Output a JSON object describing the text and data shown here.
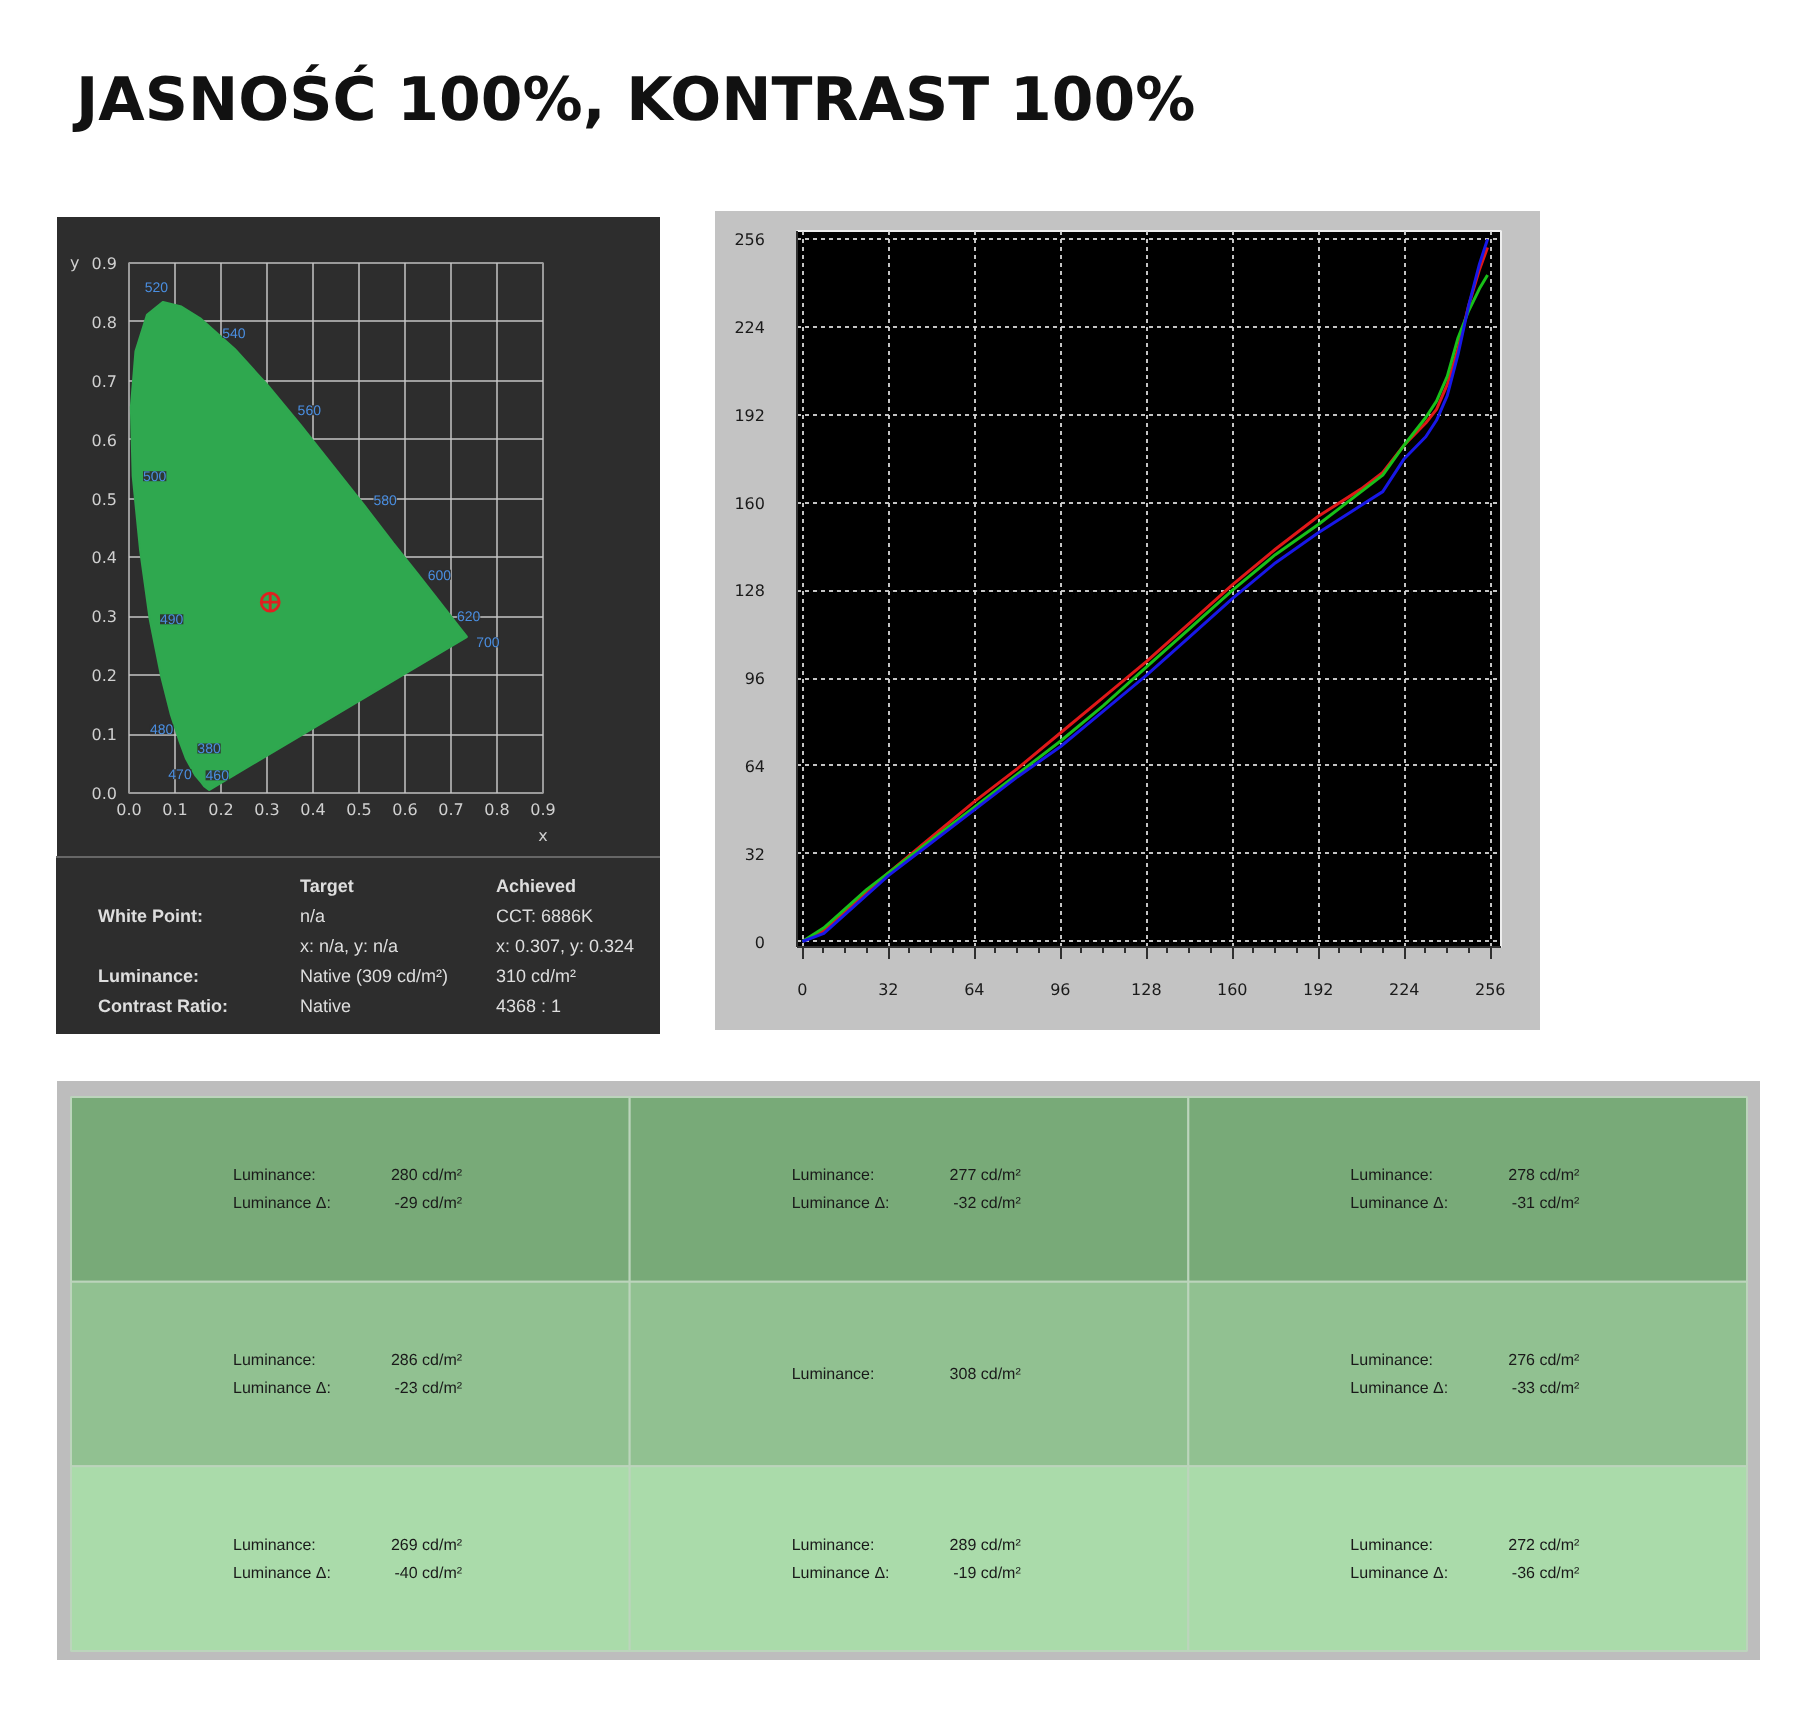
{
  "chart_data": [
    {
      "type": "scatter",
      "title": "JASNOŚĆ 100%, KONTRAST 100%",
      "xlabel": "x",
      "ylabel": "y",
      "xlim": [
        0,
        0.9
      ],
      "ylim": [
        0,
        0.9
      ],
      "xticks": [
        {
          "value": 0,
          "label": "0.0"
        },
        0.1,
        0.2,
        0.3,
        0.4,
        0.5,
        0.6,
        0.7,
        0.8,
        0.9
      ],
      "yticks": [
        {
          "value": 0,
          "label": "0.0"
        },
        0.1,
        0.2,
        0.3,
        0.4,
        0.5,
        0.6,
        0.7,
        0.8,
        0.9
      ],
      "grid": true,
      "series": [
        {
          "type": "area",
          "color": "#2fa84f",
          "x": [
            0.174,
            0.164,
            0.157,
            0.144,
            0.124,
            0.11,
            0.091,
            0.069,
            0.045,
            0.024,
            0.008,
            0.004,
            0.014,
            0.039,
            0.074,
            0.114,
            0.155,
            0.23,
            0.302,
            0.373,
            0.444,
            0.513,
            0.575,
            0.627,
            0.692,
            0.719,
            0.735,
            0.174
          ],
          "values": [
            0.005,
            0.011,
            0.018,
            0.03,
            0.058,
            0.087,
            0.133,
            0.201,
            0.295,
            0.413,
            0.538,
            0.655,
            0.75,
            0.812,
            0.834,
            0.826,
            0.806,
            0.754,
            0.692,
            0.625,
            0.555,
            0.487,
            0.424,
            0.373,
            0.308,
            0.281,
            0.265,
            0.005
          ]
        },
        {
          "type": "scatter",
          "color": "#e02020",
          "marker": "circle",
          "x": [
            0.307
          ],
          "values": [
            0.324
          ]
        }
      ],
      "annotations": [
        {
          "text": "520",
          "x": 0.074,
          "y": 0.834
        },
        {
          "text": "540",
          "x": 0.23,
          "y": 0.754
        },
        {
          "text": "560",
          "x": 0.373,
          "y": 0.625
        },
        {
          "text": "580",
          "x": 0.513,
          "y": 0.487
        },
        {
          "text": "600",
          "x": 0.627,
          "y": 0.373
        },
        {
          "text": "620",
          "x": 0.692,
          "y": 0.308
        },
        {
          "text": "700",
          "x": 0.735,
          "y": 0.265
        },
        {
          "text": "500",
          "x": 0.008,
          "y": 0.538
        },
        {
          "text": "490",
          "x": 0.045,
          "y": 0.295
        },
        {
          "text": "480",
          "x": 0.091,
          "y": 0.133
        },
        {
          "text": "470",
          "x": 0.124,
          "y": 0.058
        },
        {
          "text": "460",
          "x": 0.144,
          "y": 0.03
        },
        {
          "text": "380",
          "x": 0.174,
          "y": 0.005
        }
      ]
    },
    {
      "type": "other",
      "annotations": [
        "\tTarget\tAchieved",
        "White Point:\tn/a\tCCT: 6886K",
        "\tx: n/a, y: n/a\tx: 0.307, y: 0.324",
        "Luminance:\tNative (309 cd/m²)\t310 cd/m²",
        "Contrast Ratio:\tNative\t4368 : 1"
      ]
    },
    {
      "type": "line",
      "xlim": [
        -2,
        260
      ],
      "ylim": [
        -2,
        259
      ],
      "xticks": [
        0,
        {
          "value": 8,
          "label": null
        },
        {
          "value": 16,
          "label": null
        },
        {
          "value": 24,
          "label": null
        },
        32,
        {
          "value": 40,
          "label": null
        },
        {
          "value": 48,
          "label": null
        },
        {
          "value": 56,
          "label": null
        },
        64,
        {
          "value": 72,
          "label": null
        },
        {
          "value": 80,
          "label": null
        },
        {
          "value": 88,
          "label": null
        },
        96,
        {
          "value": 104,
          "label": null
        },
        {
          "value": 112,
          "label": null
        },
        {
          "value": 120,
          "label": null
        },
        128,
        {
          "value": 136,
          "label": null
        },
        {
          "value": 144,
          "label": null
        },
        {
          "value": 152,
          "label": null
        },
        160,
        {
          "value": 168,
          "label": null
        },
        {
          "value": 176,
          "label": null
        },
        {
          "value": 184,
          "label": null
        },
        192,
        {
          "value": 200,
          "label": null
        },
        {
          "value": 208,
          "label": null
        },
        {
          "value": 216,
          "label": null
        },
        224,
        {
          "value": 232,
          "label": null
        },
        {
          "value": 240,
          "label": null
        },
        {
          "value": 248,
          "label": null
        },
        256
      ],
      "yticks": [
        0,
        32,
        64,
        96,
        128,
        160,
        192,
        224,
        256
      ],
      "grid": true,
      "x": [
        0,
        8,
        16,
        24,
        32,
        48,
        64,
        80,
        96,
        112,
        128,
        144,
        160,
        176,
        192,
        208,
        216,
        224,
        232,
        236,
        240,
        244,
        248,
        252,
        255
      ],
      "series": [
        {
          "color": "#e01818",
          "values": [
            0,
            4,
            11,
            18,
            25,
            38,
            51,
            63,
            76,
            89,
            102,
            116,
            130,
            143,
            155,
            165,
            171,
            181,
            189,
            194,
            203,
            216,
            232,
            245,
            253
          ]
        },
        {
          "color": "#18c018",
          "values": [
            0,
            5,
            12,
            19,
            25,
            37,
            49,
            61,
            73,
            86,
            100,
            114,
            128,
            141,
            152,
            164,
            170,
            181,
            191,
            197,
            206,
            220,
            230,
            238,
            243
          ]
        },
        {
          "color": "#1818e8",
          "values": [
            0,
            3,
            10,
            17,
            24,
            36,
            48,
            60,
            71,
            84,
            97,
            111,
            125,
            138,
            149,
            159,
            164,
            176,
            184,
            190,
            199,
            214,
            232,
            247,
            256
          ]
        }
      ]
    },
    {
      "type": "other",
      "colors": [
        "#78aa78",
        "#78aa78",
        "#78aa78",
        "#91c191",
        "#91c191",
        "#91c191",
        "#aadbaa",
        "#aadbaa",
        "#aadbaa"
      ],
      "annotations": [
        "Luminance:\t280 cd/m²\nLuminance Δ:\t-29 cd/m²",
        "Luminance:\t277 cd/m²\nLuminance Δ:\t-32 cd/m²",
        "Luminance:\t278 cd/m²\nLuminance Δ:\t-31 cd/m²",
        "Luminance:\t286 cd/m²\nLuminance Δ:\t-23 cd/m²",
        "Luminance:\t308 cd/m²",
        "Luminance:\t276 cd/m²\nLuminance Δ:\t-33 cd/m²",
        "Luminance:\t269 cd/m²\nLuminance Δ:\t-40 cd/m²",
        "Luminance:\t289 cd/m²\nLuminance Δ:\t-19 cd/m²",
        "Luminance:\t272 cd/m²\nLuminance Δ:\t-36 cd/m²"
      ]
    }
  ]
}
